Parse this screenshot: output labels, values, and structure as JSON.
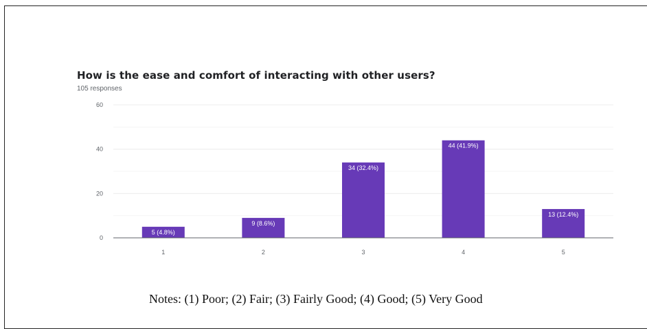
{
  "title": "How is the ease and comfort of interacting with other users?",
  "subtitle": "105 responses",
  "notes": "Notes: (1) Poor; (2) Fair; (3) Fairly Good; (4) Good; (5) Very Good",
  "colors": {
    "bar": "#673ab7",
    "bar_label": "#ffffff",
    "grid": "#ececec",
    "axis": "#5f6368",
    "tick": "#5f6368"
  },
  "chart_data": {
    "type": "bar",
    "title": "How is the ease and comfort of interacting with other users?",
    "subtitle": "105 responses",
    "categories": [
      "1",
      "2",
      "3",
      "4",
      "5"
    ],
    "values": [
      5,
      9,
      34,
      44,
      13
    ],
    "data_labels": [
      "5 (4.8%)",
      "9 (8.6%)",
      "34 (32.4%)",
      "44 (41.9%)",
      "13 (12.4%)"
    ],
    "yticks": [
      0,
      20,
      40,
      60
    ],
    "ylim": [
      0,
      60
    ],
    "grid": true,
    "xlabel": "",
    "ylabel": ""
  }
}
